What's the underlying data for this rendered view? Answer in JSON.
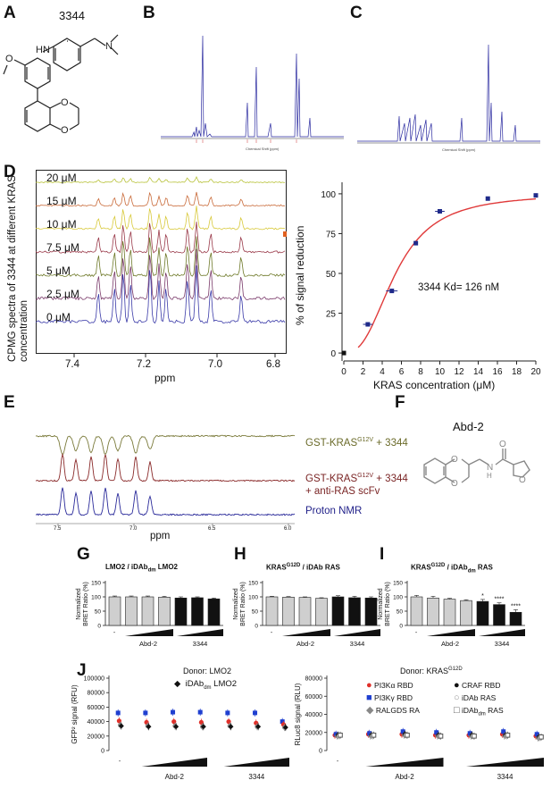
{
  "panels": {
    "A": "A",
    "B": "B",
    "C": "C",
    "D": "D",
    "E": "E",
    "F": "F",
    "G": "G",
    "H": "H",
    "I": "I",
    "J": "J"
  },
  "A": {
    "compound": "3344"
  },
  "D": {
    "nmr_ylabel": "CPMG spectra of 3344 at different KRAS concentration",
    "nmr_xlabel": "ppm",
    "nmr_ticks": [
      "7.4",
      "7.2",
      "7.0",
      "6.8"
    ],
    "trace_labels": [
      "20 μM",
      "15 μM",
      "10 μM",
      "7.5 μM",
      "5 μM",
      "2.5 μM",
      "0 μM"
    ],
    "trace_colors": [
      "#b8c23a",
      "#c96b3a",
      "#d8c93a",
      "#9a3a4a",
      "#6f7a2a",
      "#7a3a6a",
      "#3a3aa8"
    ]
  },
  "E": {
    "labels": [
      "GST-KRAS G12V + 3344",
      "GST-KRAS G12V + 3344 + anti-RAS scFv",
      "Proton NMR"
    ],
    "xlabel": "ppm",
    "ticks": [
      "7.5",
      "7.0",
      "6.5",
      "6.0"
    ],
    "colors": [
      "#7a7a3a",
      "#8a2a2a",
      "#2a2a9a"
    ]
  },
  "F": {
    "compound": "Abd-2"
  },
  "G": {
    "title_pre": "LMO2 / iDAb",
    "title_sub": "dm",
    "title_post": " LMO2",
    "ylabel": "Normalized BRET Ratio (%)",
    "ticks": [
      "150",
      "100",
      "50",
      "0"
    ],
    "values": [
      100,
      100,
      100,
      99,
      96,
      97,
      93
    ],
    "errors": [
      3,
      3,
      3,
      3,
      4,
      3,
      3
    ],
    "xlabels": [
      "-",
      "Abd-2",
      "3344"
    ]
  },
  "H": {
    "title_pre": "KRAS",
    "title_sup": "G12D",
    "title_post": " / iDAb RAS",
    "ylabel": "Normalized BRET Ratio (%)",
    "ticks": [
      "150",
      "100",
      "50",
      "0"
    ],
    "values": [
      100,
      99,
      98,
      95,
      100,
      97,
      96
    ],
    "errors": [
      2,
      2,
      2,
      2,
      4,
      5,
      4
    ],
    "xlabels": [
      "-",
      "Abd-2",
      "3344"
    ]
  },
  "I": {
    "title_pre": "KRAS",
    "title_sup": "G12D",
    "title_mid": " / iDAb",
    "title_sub": "dm",
    "title_post": " RAS",
    "ylabel": "Normalized BRET Ratio (%)",
    "ticks": [
      "150",
      "100",
      "50",
      "0"
    ],
    "values": [
      100,
      96,
      92,
      87,
      84,
      73,
      46
    ],
    "errors": [
      5,
      6,
      3,
      3,
      7,
      6,
      9
    ],
    "stars": [
      "",
      "",
      "",
      "",
      "*",
      "****",
      "****"
    ],
    "xlabels": [
      "-",
      "Abd-2",
      "3344"
    ]
  },
  "J_left": {
    "donor": "Donor: LMO2",
    "legend": "iDAb dm LMO2",
    "ylabel": "GFP² signal (RFU)",
    "ticks": [
      "100000",
      "80000",
      "60000",
      "40000",
      "20000",
      "0"
    ],
    "xlabels": [
      "-",
      "Abd-2",
      "3344"
    ]
  },
  "J_right": {
    "donor": "Donor: KRAS G12D",
    "ylabel": "RLuc8 signal (RLU)",
    "ticks": [
      "80000",
      "60000",
      "40000",
      "20000",
      "0"
    ],
    "legend": [
      "PI3Kα RBD",
      "PI3Kγ RBD",
      "RALGDS RA",
      "CRAF RBD",
      "iDAb RAS",
      "iDAb dm RAS"
    ],
    "xlabels": [
      "-",
      "Abd-2",
      "3344"
    ]
  },
  "chart_data": [
    {
      "type": "scatter",
      "title": "",
      "annotation": "3344 Kd= 126 nM",
      "xlabel": "KRAS concentration (μM)",
      "ylabel": "% of signal reduction",
      "xlim": [
        0,
        20
      ],
      "ylim": [
        -5,
        105
      ],
      "xticks": [
        "0",
        "2",
        "4",
        "6",
        "8",
        "10",
        "12",
        "14",
        "16",
        "18",
        "20"
      ],
      "yticks": [
        "0",
        "25",
        "50",
        "75",
        "100"
      ],
      "x": [
        0,
        2.5,
        5,
        7.5,
        10,
        15,
        20
      ],
      "y": [
        0,
        18,
        39,
        69,
        89,
        97,
        99
      ],
      "xerr": [
        0,
        0.5,
        0.6,
        0.2,
        0.5,
        0.2,
        0.1
      ],
      "marker_color": "#1f2a8a",
      "fit_color": "#e03a3a"
    },
    {
      "type": "scatter",
      "panel": "J-left",
      "ylabel": "GFP² signal (RFU)",
      "ylim": [
        0,
        100000
      ],
      "categories": [
        "-",
        "Abd-2 1",
        "Abd-2 2",
        "Abd-2 3",
        "3344 1",
        "3344 2",
        "3344 3"
      ],
      "series": [
        {
          "name": "",
          "color": "#1f3fd0",
          "values": [
            52000,
            52000,
            53000,
            53000,
            52000,
            52000,
            40000
          ]
        },
        {
          "name": "",
          "color": "#e0302a",
          "values": [
            41000,
            39000,
            40000,
            39000,
            40000,
            38000,
            36000
          ]
        },
        {
          "name": "",
          "color": "#888888",
          "values": [
            35000,
            34000,
            34000,
            33000,
            34000,
            33000,
            32000
          ]
        },
        {
          "name": "iDAb dm LMO2",
          "color": "#111111",
          "values": [
            34000,
            33000,
            33000,
            33000,
            33000,
            33000,
            32000
          ]
        }
      ]
    },
    {
      "type": "scatter",
      "panel": "J-right",
      "ylabel": "RLuc8 signal (RLU)",
      "ylim": [
        0,
        80000
      ],
      "categories": [
        "-",
        "Abd-2 1",
        "Abd-2 2",
        "Abd-2 3",
        "3344 1",
        "3344 2",
        "3344 3"
      ],
      "series": [
        {
          "name": "PI3Kα RBD",
          "color": "#e0302a",
          "values": [
            17000,
            18000,
            18000,
            17000,
            17000,
            18000,
            16000
          ]
        },
        {
          "name": "PI3Kγ RBD",
          "color": "#1f3fd0",
          "values": [
            18000,
            19000,
            21000,
            20000,
            19000,
            21000,
            18000
          ]
        },
        {
          "name": "RALGDS RA",
          "color": "#888888",
          "values": [
            16000,
            16000,
            17000,
            16000,
            16000,
            16000,
            14000
          ]
        },
        {
          "name": "CRAF RBD",
          "color": "#111111",
          "values": [
            17000,
            17000,
            18000,
            17000,
            17000,
            17000,
            15000
          ]
        },
        {
          "name": "iDAb RAS",
          "color": "#bbbbbb",
          "values": [
            16000,
            16000,
            17000,
            16000,
            16000,
            16000,
            14000
          ]
        },
        {
          "name": "iDAb dm RAS",
          "color": "#555555",
          "values": [
            17000,
            17000,
            17000,
            16000,
            16000,
            17000,
            15000
          ]
        }
      ]
    }
  ]
}
